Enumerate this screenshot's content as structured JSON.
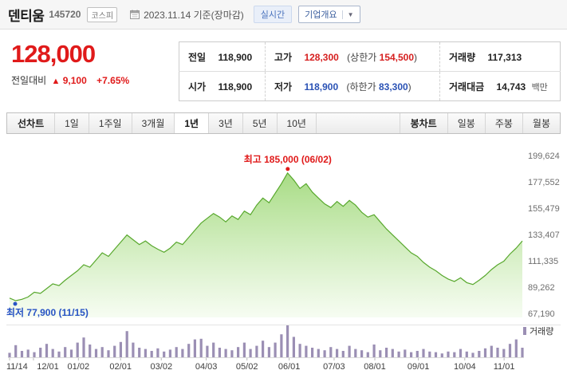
{
  "header": {
    "stock_name": "덴티움",
    "stock_code": "145720",
    "market_badge": "코스피",
    "date_text": "2023.11.14 기준(장마감)",
    "realtime_badge": "실시간",
    "company_overview_button": "기업개요",
    "dropdown_caret": "▼"
  },
  "price": {
    "current": "128,000",
    "change_label": "전일대비",
    "change_arrow": "▲",
    "change_value": "9,100",
    "change_percent": "+7.65%"
  },
  "summary": {
    "rows": [
      {
        "c1_label": "전일",
        "c1_value": "118,900",
        "c2_label": "고가",
        "c2_value": "128,300",
        "c2_limit_label": "(상한가",
        "c2_limit_value": "154,500",
        "c2_limit_close": ")",
        "c3_label": "거래량",
        "c3_value": "117,313"
      },
      {
        "c1_label": "시가",
        "c1_value": "118,900",
        "c2_label": "저가",
        "c2_value": "118,900",
        "c2_limit_label": "(하한가",
        "c2_limit_value": "83,300",
        "c2_limit_close": ")",
        "c3_label": "거래대금",
        "c3_value": "14,743",
        "c3_unit": "백만"
      }
    ]
  },
  "tabs": {
    "line_chart_label": "선차트",
    "periods": [
      "1일",
      "1주일",
      "3개월",
      "1년",
      "3년",
      "5년",
      "10년"
    ],
    "selected_period": "1년",
    "candle_chart_label": "봉차트",
    "candle_types": [
      "일봉",
      "주봉",
      "월봉"
    ]
  },
  "chart_data": {
    "type": "area",
    "title": "덴티움 1년 주가 차트",
    "legend_position": "bottom-right",
    "y_axis_ticks": [
      199624,
      177552,
      155479,
      133407,
      111335,
      89262,
      67190
    ],
    "y_max": 199624,
    "y_min": 67190,
    "total_days": 365,
    "x_axis": [
      {
        "label": "11/14",
        "day": 0
      },
      {
        "label": "12/01",
        "day": 17
      },
      {
        "label": "01/02",
        "day": 49
      },
      {
        "label": "02/01",
        "day": 79
      },
      {
        "label": "03/02",
        "day": 108
      },
      {
        "label": "04/03",
        "day": 140
      },
      {
        "label": "05/02",
        "day": 169
      },
      {
        "label": "06/01",
        "day": 199
      },
      {
        "label": "07/03",
        "day": 231
      },
      {
        "label": "08/01",
        "day": 260
      },
      {
        "label": "09/01",
        "day": 291
      },
      {
        "label": "10/04",
        "day": 324
      },
      {
        "label": "11/01",
        "day": 352
      }
    ],
    "prices": [
      80000,
      77900,
      79000,
      81000,
      85000,
      84000,
      88000,
      92000,
      90500,
      95000,
      99000,
      103000,
      108000,
      106000,
      112000,
      118000,
      115000,
      121000,
      127000,
      133000,
      129000,
      125000,
      128000,
      124000,
      121000,
      118500,
      122000,
      127000,
      125000,
      131000,
      137000,
      143000,
      147000,
      151000,
      148000,
      144000,
      149000,
      146000,
      153000,
      150000,
      158000,
      164000,
      160000,
      168000,
      176000,
      185000,
      179000,
      172000,
      176000,
      169000,
      164000,
      159000,
      156000,
      161000,
      157000,
      162000,
      158000,
      152000,
      148000,
      150000,
      144000,
      138000,
      133000,
      128000,
      123000,
      118000,
      115000,
      110000,
      106000,
      103000,
      99000,
      96000,
      94000,
      97000,
      93000,
      91500,
      95000,
      99000,
      104000,
      108000,
      111000,
      117000,
      122000,
      128000
    ],
    "volumes": [
      14,
      38,
      20,
      24,
      16,
      30,
      42,
      26,
      18,
      32,
      24,
      46,
      62,
      40,
      26,
      32,
      22,
      36,
      48,
      82,
      46,
      30,
      26,
      20,
      28,
      18,
      24,
      32,
      26,
      42,
      56,
      58,
      36,
      46,
      30,
      26,
      22,
      32,
      46,
      26,
      36,
      52,
      32,
      46,
      72,
      100,
      64,
      42,
      36,
      30,
      26,
      22,
      32,
      26,
      20,
      36,
      26,
      22,
      16,
      40,
      22,
      30,
      26,
      18,
      24,
      16,
      20,
      26,
      18,
      16,
      12,
      18,
      16,
      26,
      18,
      14,
      20,
      28,
      36,
      30,
      26,
      42,
      56,
      30
    ],
    "max_annotation": {
      "label": "최고",
      "value": "185,000",
      "date": "(06/02)",
      "price": 185000,
      "day": 198
    },
    "min_annotation": {
      "label": "최저",
      "value": "77,900",
      "date": "(11/15)",
      "price": 77900,
      "day": 4
    },
    "volume_legend": "거래량",
    "line_color": "#58a82d",
    "area_top_color": "#a3da7e",
    "area_bottom_color": "#f5fcf0",
    "volume_color": "#9b8fb4",
    "up_color": "#e01a1a",
    "down_color": "#2753c4"
  }
}
